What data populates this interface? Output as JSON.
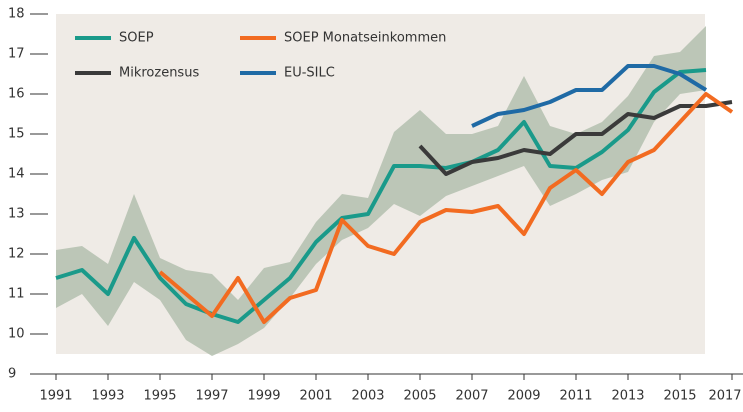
{
  "chart_data": {
    "type": "line",
    "x": [
      1991,
      1992,
      1993,
      1994,
      1995,
      1996,
      1997,
      1998,
      1999,
      2000,
      2001,
      2002,
      2003,
      2004,
      2005,
      2006,
      2007,
      2008,
      2009,
      2010,
      2011,
      2012,
      2013,
      2014,
      2015,
      2016,
      2017
    ],
    "series": [
      {
        "name": "SOEP",
        "color": "#1a9a8a",
        "values": [
          11.4,
          11.6,
          11.0,
          12.4,
          11.4,
          10.75,
          10.5,
          10.3,
          10.85,
          11.4,
          12.3,
          12.9,
          13.0,
          14.2,
          14.2,
          14.15,
          14.3,
          14.6,
          15.3,
          14.2,
          14.15,
          14.55,
          15.1,
          16.05,
          16.55,
          16.6,
          null
        ]
      },
      {
        "name": "SOEP Monatseinkommen",
        "color": "#f26b21",
        "values": [
          null,
          null,
          null,
          null,
          11.55,
          11.0,
          10.45,
          11.4,
          10.3,
          10.9,
          11.1,
          12.85,
          12.2,
          12.0,
          12.8,
          13.1,
          13.05,
          13.2,
          12.5,
          13.65,
          14.1,
          13.5,
          14.3,
          14.6,
          15.3,
          16.0,
          15.55
        ]
      },
      {
        "name": "Mikrozensus",
        "color": "#3a3a3a",
        "values": [
          null,
          null,
          null,
          null,
          null,
          null,
          null,
          null,
          null,
          null,
          null,
          null,
          null,
          null,
          14.7,
          14.0,
          14.3,
          14.4,
          14.6,
          14.5,
          15.0,
          15.0,
          15.5,
          15.4,
          15.7,
          15.7,
          15.8
        ]
      },
      {
        "name": "EU-SILC",
        "color": "#1f6aa5",
        "values": [
          null,
          null,
          null,
          null,
          null,
          null,
          null,
          null,
          null,
          null,
          null,
          null,
          null,
          null,
          null,
          null,
          15.2,
          15.5,
          15.6,
          15.8,
          16.1,
          16.1,
          16.7,
          16.7,
          16.5,
          16.1,
          null
        ]
      }
    ],
    "band": {
      "color": "#b3bfae",
      "lower": [
        10.65,
        11.0,
        10.2,
        11.3,
        10.85,
        9.85,
        9.45,
        9.75,
        10.15,
        10.9,
        11.75,
        12.35,
        12.65,
        13.25,
        12.95,
        13.45,
        13.7,
        13.95,
        14.2,
        13.2,
        13.5,
        13.85,
        14.05,
        15.3,
        16.0,
        16.1,
        null
      ],
      "upper": [
        12.1,
        12.2,
        11.75,
        13.5,
        11.9,
        11.6,
        11.5,
        10.85,
        11.65,
        11.8,
        12.8,
        13.5,
        13.4,
        15.05,
        15.6,
        15.0,
        15.0,
        15.2,
        16.45,
        15.2,
        15.0,
        15.3,
        15.95,
        16.95,
        17.05,
        17.7,
        null
      ]
    },
    "xlim": [
      1991,
      2017
    ],
    "xticks": [
      1991,
      1993,
      1995,
      1997,
      1999,
      2001,
      2003,
      2005,
      2007,
      2009,
      2011,
      2013,
      2015,
      2017
    ],
    "ylim": [
      9,
      18
    ],
    "yticks": [
      9,
      10,
      11,
      12,
      13,
      14,
      15,
      16,
      17,
      18
    ],
    "legend": "top-left"
  }
}
